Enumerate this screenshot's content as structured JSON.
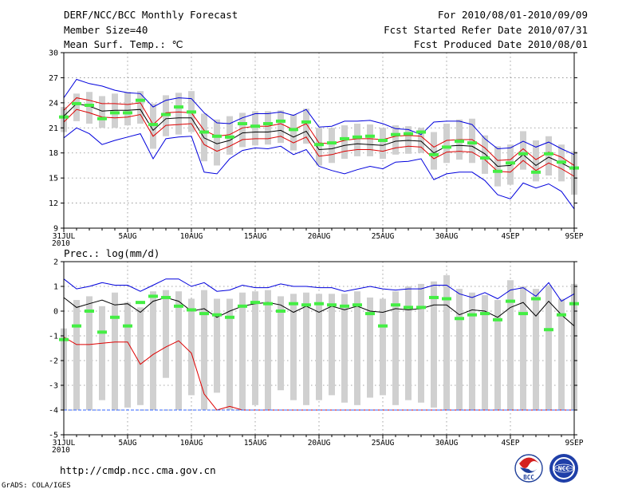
{
  "header": {
    "title": "DERF/NCC/BCC Monthly Forecast",
    "member_size": "Member Size=40",
    "variable1": "Mean Surf. Temp.: ℃",
    "period": "For 2010/08/01-2010/09/09",
    "started": "Fcst Started Refer Date 2010/07/31",
    "produced": "Fcst Produced Date 2010/08/01"
  },
  "footer": {
    "url": "http://cmdp.ncc.cma.gov.cn",
    "grads": "GrADS: COLA/IGES",
    "bcc_logo": "BCC",
    "ncc_logo": "NCC"
  },
  "colors": {
    "max_line": "#0000dd",
    "min_line": "#dd0000",
    "mean_line": "#000000",
    "spread_line": "#cc0000",
    "obs": "#44ee44",
    "box": "#cfcfcf",
    "grid": "#888888"
  },
  "chart_data": [
    {
      "type": "line",
      "title": "Mean Surf. Temp.: ℃",
      "xlabel": "",
      "ylabel": "",
      "ylim": [
        9,
        30
      ],
      "yticks": [
        9,
        12,
        15,
        18,
        21,
        24,
        27,
        30
      ],
      "x_tick_labels": [
        {
          "day": 0,
          "label": "31JUL"
        },
        {
          "day": 5,
          "label": "5AUG"
        },
        {
          "day": 10,
          "label": "10AUG"
        },
        {
          "day": 15,
          "label": "15AUG"
        },
        {
          "day": 20,
          "label": "20AUG"
        },
        {
          "day": 25,
          "label": "25AUG"
        },
        {
          "day": 30,
          "label": "30AUG"
        },
        {
          "day": 35,
          "label": "4SEP"
        },
        {
          "day": 40,
          "label": "9SEP"
        }
      ],
      "x_sub_label": "2010",
      "grid": true,
      "series": [
        {
          "name": "max",
          "color": "#0000dd",
          "values": [
            24.6,
            26.8,
            26.3,
            26.0,
            25.5,
            25.2,
            25.1,
            23.5,
            24.3,
            24.6,
            24.5,
            22.8,
            21.6,
            21.5,
            22.2,
            22.7,
            22.7,
            22.9,
            22.5,
            23.2,
            21.1,
            21.2,
            21.8,
            21.8,
            21.9,
            21.5,
            20.9,
            20.8,
            20.2,
            21.7,
            21.8,
            21.8,
            21.4,
            19.7,
            18.5,
            18.6,
            19.4,
            18.7,
            19.3,
            18.5,
            17.8
          ]
        },
        {
          "name": "p75",
          "color": "#dd0000",
          "values": [
            23.1,
            24.6,
            24.3,
            23.9,
            23.9,
            23.8,
            24.0,
            21.4,
            22.8,
            22.9,
            22.8,
            20.7,
            20.0,
            20.2,
            21.0,
            21.2,
            21.2,
            21.5,
            20.8,
            21.5,
            19.2,
            19.1,
            19.5,
            19.7,
            19.7,
            19.6,
            20.0,
            20.1,
            20.0,
            18.7,
            19.5,
            19.6,
            19.6,
            18.6,
            17.1,
            17.2,
            18.5,
            17.2,
            18.1,
            17.5,
            16.5
          ]
        },
        {
          "name": "mean",
          "color": "#000000",
          "values": [
            22.4,
            23.9,
            23.6,
            23.0,
            23.1,
            23.1,
            23.2,
            20.7,
            22.1,
            22.2,
            22.2,
            19.8,
            19.1,
            19.5,
            20.4,
            20.5,
            20.5,
            20.7,
            19.9,
            20.6,
            18.4,
            18.5,
            18.9,
            19.1,
            19.0,
            18.9,
            19.4,
            19.5,
            19.4,
            18.0,
            18.8,
            18.9,
            18.8,
            17.9,
            16.4,
            16.5,
            17.8,
            16.5,
            17.5,
            16.8,
            16.0
          ]
        },
        {
          "name": "p25",
          "color": "#dd0000",
          "values": [
            21.7,
            23.2,
            22.8,
            22.3,
            22.2,
            22.3,
            22.6,
            20.0,
            21.3,
            21.4,
            21.5,
            19.0,
            18.2,
            18.8,
            19.6,
            19.7,
            19.7,
            20.0,
            19.2,
            19.9,
            17.6,
            17.8,
            18.2,
            18.4,
            18.4,
            18.2,
            18.6,
            18.8,
            18.7,
            17.3,
            18.1,
            18.2,
            18.1,
            17.2,
            15.8,
            15.7,
            17.1,
            15.9,
            16.8,
            16.1,
            15.2
          ]
        },
        {
          "name": "min",
          "color": "#0000dd",
          "values": [
            19.8,
            21.0,
            20.3,
            19.0,
            19.5,
            19.9,
            20.3,
            17.3,
            19.7,
            19.9,
            20.0,
            15.7,
            15.5,
            17.3,
            18.3,
            18.6,
            18.5,
            18.8,
            17.8,
            18.4,
            16.4,
            15.9,
            15.5,
            16.0,
            16.4,
            16.1,
            16.9,
            17.0,
            17.3,
            14.8,
            15.5,
            15.7,
            15.7,
            14.7,
            13.0,
            12.5,
            14.4,
            13.8,
            14.3,
            13.4,
            11.3
          ]
        }
      ],
      "observed": [
        22.3,
        23.9,
        23.7,
        22.1,
        22.8,
        22.8,
        24.3,
        21.4,
        22.6,
        23.5,
        22.9,
        20.5,
        20.0,
        19.9,
        21.5,
        21.2,
        21.5,
        21.8,
        20.8,
        21.7,
        19.0,
        19.2,
        19.7,
        19.9,
        20.0,
        19.5,
        20.2,
        20.3,
        20.5,
        17.8,
        18.7,
        19.4,
        19.2,
        17.4,
        15.8,
        16.8,
        17.9,
        15.7,
        17.9,
        16.9,
        16.2
      ],
      "boxes": [
        [
          20.5,
          23.5
        ],
        [
          21.8,
          25.1
        ],
        [
          21.5,
          25.3
        ],
        [
          21.0,
          24.8
        ],
        [
          21.0,
          25.1
        ],
        [
          21.3,
          25.3
        ],
        [
          21.5,
          25.4
        ],
        [
          18.5,
          23.9
        ],
        [
          20.0,
          24.9
        ],
        [
          20.2,
          25.2
        ],
        [
          20.5,
          25.4
        ],
        [
          17.0,
          22.7
        ],
        [
          16.5,
          22.0
        ],
        [
          17.8,
          22.4
        ],
        [
          18.7,
          22.8
        ],
        [
          18.9,
          23.0
        ],
        [
          19.0,
          23.0
        ],
        [
          19.2,
          23.1
        ],
        [
          18.3,
          22.6
        ],
        [
          19.1,
          23.3
        ],
        [
          16.5,
          21.0
        ],
        [
          16.8,
          21.0
        ],
        [
          17.3,
          21.3
        ],
        [
          17.6,
          21.5
        ],
        [
          17.6,
          21.4
        ],
        [
          17.3,
          21.0
        ],
        [
          17.8,
          21.3
        ],
        [
          17.9,
          21.2
        ],
        [
          18.0,
          21.0
        ],
        [
          16.0,
          20.5
        ],
        [
          16.8,
          21.5
        ],
        [
          17.2,
          22.0
        ],
        [
          16.8,
          22.1
        ],
        [
          15.5,
          20.1
        ],
        [
          14.0,
          18.8
        ],
        [
          14.2,
          19.0
        ],
        [
          16.0,
          20.6
        ],
        [
          14.6,
          19.5
        ],
        [
          15.3,
          20.0
        ],
        [
          14.6,
          19.0
        ],
        [
          13.0,
          18.2
        ]
      ]
    },
    {
      "type": "line",
      "title": "Prec.: log(mm/d)",
      "xlabel": "",
      "ylabel": "",
      "ylim": [
        -5,
        2
      ],
      "yticks": [
        -5,
        -4,
        -3,
        -2,
        -1,
        0,
        1,
        2
      ],
      "x_tick_labels": [
        {
          "day": 0,
          "label": "31JUL"
        },
        {
          "day": 5,
          "label": "5AUG"
        },
        {
          "day": 10,
          "label": "10AUG"
        },
        {
          "day": 15,
          "label": "15AUG"
        },
        {
          "day": 20,
          "label": "20AUG"
        },
        {
          "day": 25,
          "label": "25AUG"
        },
        {
          "day": 30,
          "label": "30AUG"
        },
        {
          "day": 35,
          "label": "4SEP"
        },
        {
          "day": 40,
          "label": "9SEP"
        }
      ],
      "x_sub_label": "2010",
      "grid": true,
      "series": [
        {
          "name": "max",
          "color": "#0000dd",
          "values": [
            1.3,
            0.9,
            1.0,
            1.15,
            1.05,
            1.05,
            0.8,
            1.05,
            1.3,
            1.3,
            1.0,
            1.15,
            0.8,
            0.85,
            1.05,
            0.95,
            0.95,
            1.1,
            1.0,
            1.0,
            0.95,
            0.95,
            0.8,
            0.9,
            1.0,
            0.9,
            0.85,
            0.9,
            0.9,
            1.05,
            1.05,
            0.7,
            0.55,
            0.75,
            0.5,
            0.85,
            0.95,
            0.6,
            1.15,
            0.4,
            0.7
          ]
        },
        {
          "name": "mean",
          "color": "#000000",
          "values": [
            0.55,
            0.15,
            0.3,
            0.45,
            0.25,
            0.3,
            -0.05,
            0.4,
            0.55,
            0.4,
            0.0,
            0.1,
            -0.25,
            0.0,
            0.2,
            0.3,
            0.35,
            0.25,
            -0.05,
            0.2,
            -0.05,
            0.2,
            0.05,
            0.2,
            0.0,
            -0.05,
            0.1,
            0.05,
            0.1,
            0.25,
            0.25,
            -0.15,
            0.05,
            0.0,
            -0.25,
            0.15,
            0.35,
            -0.2,
            0.4,
            -0.15,
            -0.6
          ]
        },
        {
          "name": "p10",
          "color": "#dd0000",
          "values": [
            -1.05,
            -1.35,
            -1.35,
            -1.3,
            -1.25,
            -1.25,
            -2.15,
            -1.75,
            -1.45,
            -1.2,
            -1.7,
            -3.35,
            -4.0,
            -3.85,
            -4.0,
            -4.0,
            -4.0,
            -4.0,
            -4.0,
            -4.0,
            -4.0,
            -4.0,
            -4.0,
            -4.0,
            -4.0,
            -4.0,
            -4.0,
            -4.0,
            -4.0,
            -4.0,
            -4.0,
            -4.0,
            -4.0,
            -4.0,
            -4.0,
            -4.0,
            -4.0,
            -4.0,
            -4.0,
            -4.0,
            -4.0
          ]
        },
        {
          "name": "min",
          "color": "#3366ff",
          "values": [
            -4.0,
            -4.0,
            -4.0,
            -4.0,
            -4.0,
            -4.0,
            -4.0,
            -4.0,
            -4.0,
            -4.0,
            -4.0,
            -4.0,
            -4.0,
            -4.0,
            -4.0,
            -4.0,
            -4.0,
            -4.0,
            -4.0,
            -4.0,
            -4.0,
            -4.0,
            -4.0,
            -4.0,
            -4.0,
            -4.0,
            -4.0,
            -4.0,
            -4.0,
            -4.0,
            -4.0,
            -4.0,
            -4.0,
            -4.0,
            -4.0,
            -4.0,
            -4.0,
            -4.0,
            -4.0,
            -4.0,
            -4.0
          ]
        }
      ],
      "p10_after_day13": [
        -4.0,
        -4.0,
        -4.0,
        -4.0,
        -4.0,
        -4.0,
        -4.0,
        -4.0,
        -4.0,
        -4.0,
        -4.0,
        -4.0,
        -4.0,
        -4.0,
        -4.0,
        -4.0,
        -4.0,
        -4.0,
        -4.0,
        -4.0,
        -4.0,
        -4.0,
        -4.0,
        -4.0,
        -4.0,
        -4.0,
        -4.0
      ],
      "observed": [
        -1.15,
        -0.6,
        0.0,
        -0.85,
        -0.25,
        -0.6,
        0.35,
        0.6,
        0.55,
        0.2,
        0.05,
        -0.1,
        -0.15,
        -0.25,
        0.2,
        0.35,
        0.3,
        0.0,
        0.3,
        0.25,
        0.3,
        0.25,
        0.2,
        0.25,
        -0.1,
        -0.6,
        0.25,
        0.15,
        0.15,
        0.55,
        0.5,
        -0.3,
        -0.15,
        -0.1,
        -0.35,
        0.4,
        -0.1,
        0.5,
        -0.75,
        -0.15,
        0.3
      ],
      "boxes": [
        [
          -4.0,
          -0.7
        ],
        [
          -4.0,
          0.45
        ],
        [
          -4.0,
          0.6
        ],
        [
          -3.6,
          0.2
        ],
        [
          -4.0,
          0.75
        ],
        [
          -3.9,
          0.35
        ],
        [
          -3.8,
          0.15
        ],
        [
          -4.0,
          0.8
        ],
        [
          -2.7,
          0.85
        ],
        [
          -4.0,
          0.8
        ],
        [
          -3.4,
          0.5
        ],
        [
          -4.0,
          0.85
        ],
        [
          -3.3,
          0.5
        ],
        [
          -4.0,
          0.5
        ],
        [
          -4.0,
          0.75
        ],
        [
          -3.8,
          0.8
        ],
        [
          -4.0,
          0.85
        ],
        [
          -3.2,
          0.6
        ],
        [
          -3.6,
          0.7
        ],
        [
          -3.8,
          0.75
        ],
        [
          -3.6,
          0.7
        ],
        [
          -3.4,
          0.7
        ],
        [
          -3.7,
          0.7
        ],
        [
          -3.8,
          0.8
        ],
        [
          -3.5,
          0.55
        ],
        [
          -3.4,
          0.5
        ],
        [
          -3.8,
          0.8
        ],
        [
          -3.6,
          1.0
        ],
        [
          -3.7,
          1.1
        ],
        [
          -3.9,
          1.2
        ],
        [
          -4.0,
          1.45
        ],
        [
          -4.0,
          0.9
        ],
        [
          -4.0,
          0.75
        ],
        [
          -4.0,
          0.65
        ],
        [
          -4.0,
          0.45
        ],
        [
          -4.0,
          1.25
        ],
        [
          -4.0,
          1.0
        ],
        [
          -4.0,
          0.9
        ],
        [
          -4.0,
          1.05
        ],
        [
          -4.0,
          0.5
        ],
        [
          -4.0,
          1.1
        ]
      ]
    }
  ]
}
